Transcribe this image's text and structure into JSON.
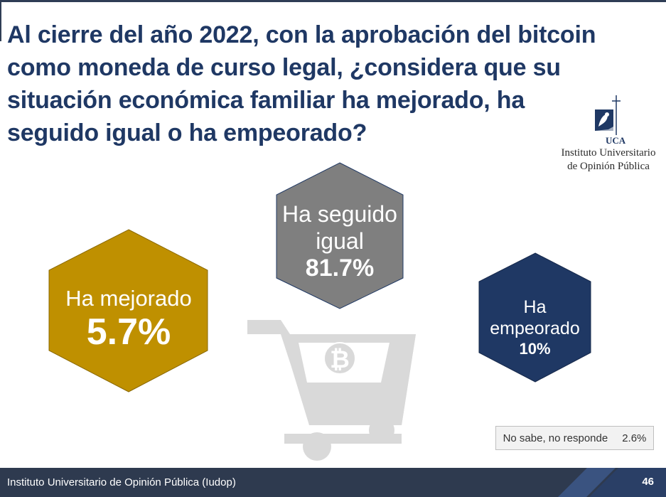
{
  "title": "Al cierre del año 2022, con la aprobación del bitcoin como moneda de curso legal, ¿considera que su situación económica familiar ha mejorado, ha seguido igual o ha empeorado?",
  "logo": {
    "monogram": "UCA",
    "line1": "Instituto Universitario",
    "line2": "de Opinión Pública"
  },
  "results": [
    {
      "label": "Ha mejorado",
      "value": "5.7%",
      "color": "#bf9000"
    },
    {
      "label": "Ha seguido igual",
      "value": "81.7%",
      "color": "#7f7f7f"
    },
    {
      "label": "Ha empeorado",
      "value": "10%",
      "color": "#1f3864"
    }
  ],
  "no_response": {
    "label": "No sabe, no responde",
    "value": "2.6%"
  },
  "footer": {
    "text": "Instituto Universitario de Opinión Pública (Iudop)",
    "page": "46"
  },
  "icons": [
    "shopping-cart-icon",
    "bitcoin-icon"
  ]
}
